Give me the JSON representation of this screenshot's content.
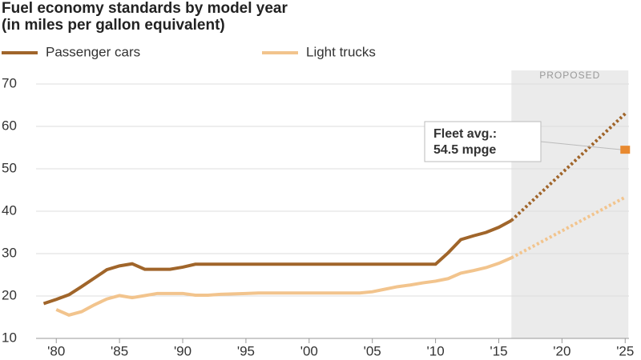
{
  "chart_data": {
    "type": "line",
    "title": "Fuel economy standards by model year",
    "subtitle": "(in miles per gallon equivalent)",
    "proposed_label": "PROPOSED",
    "proposed_range": [
      2016,
      2025
    ],
    "series": [
      {
        "name": "Passenger cars",
        "color": "#a0652a",
        "x": [
          1979,
          1980,
          1981,
          1982,
          1983,
          1984,
          1985,
          1986,
          1987,
          1988,
          1989,
          1990,
          1991,
          1992,
          1993,
          1994,
          1995,
          1996,
          1997,
          1998,
          1999,
          2000,
          2001,
          2002,
          2003,
          2004,
          2005,
          2006,
          2007,
          2008,
          2009,
          2010,
          2011,
          2012,
          2013,
          2014,
          2015,
          2016,
          2025
        ],
        "values": [
          18.2,
          19.2,
          20.3,
          22.2,
          24.2,
          26.2,
          27.1,
          27.6,
          26.3,
          26.3,
          26.3,
          26.8,
          27.5,
          27.5,
          27.5,
          27.5,
          27.5,
          27.5,
          27.5,
          27.5,
          27.5,
          27.5,
          27.5,
          27.5,
          27.5,
          27.5,
          27.5,
          27.5,
          27.5,
          27.5,
          27.5,
          27.5,
          30.2,
          33.3,
          34.2,
          35,
          36.2,
          37.8,
          63
        ]
      },
      {
        "name": "Light trucks",
        "color": "#f2c48d",
        "x": [
          1980,
          1981,
          1982,
          1983,
          1984,
          1985,
          1986,
          1987,
          1988,
          1989,
          1990,
          1991,
          1992,
          1993,
          1994,
          1995,
          1996,
          1997,
          1998,
          1999,
          2000,
          2001,
          2002,
          2003,
          2004,
          2005,
          2006,
          2007,
          2008,
          2009,
          2010,
          2011,
          2012,
          2013,
          2014,
          2015,
          2016,
          2025
        ],
        "values": [
          16.8,
          15.5,
          16.3,
          17.9,
          19.3,
          20.1,
          19.6,
          20.1,
          20.6,
          20.6,
          20.6,
          20.2,
          20.2,
          20.4,
          20.5,
          20.6,
          20.7,
          20.7,
          20.7,
          20.7,
          20.7,
          20.7,
          20.7,
          20.7,
          20.7,
          21,
          21.6,
          22.2,
          22.6,
          23.1,
          23.5,
          24.1,
          25.4,
          26,
          26.7,
          27.7,
          29,
          43.3
        ]
      }
    ],
    "annotation": {
      "lines": [
        "Fleet avg.:",
        "54.5 mpge"
      ],
      "x": 2025,
      "value": 54.5,
      "color": "#e8892f"
    },
    "xlim": [
      1978.4,
      2025.3
    ],
    "xticks": [
      {
        "value": 1980,
        "label": "'80"
      },
      {
        "value": 1985,
        "label": "'85"
      },
      {
        "value": 1990,
        "label": "'90"
      },
      {
        "value": 1995,
        "label": "'95"
      },
      {
        "value": 2000,
        "label": "'00"
      },
      {
        "value": 2005,
        "label": "'05"
      },
      {
        "value": 2010,
        "label": "'10"
      },
      {
        "value": 2015,
        "label": "'15"
      },
      {
        "value": 2020,
        "label": "'20"
      },
      {
        "value": 2025,
        "label": "'25"
      }
    ],
    "ylim": [
      10,
      70
    ],
    "yticks": [
      10,
      20,
      30,
      40,
      50,
      60,
      70
    ],
    "grid": true
  }
}
